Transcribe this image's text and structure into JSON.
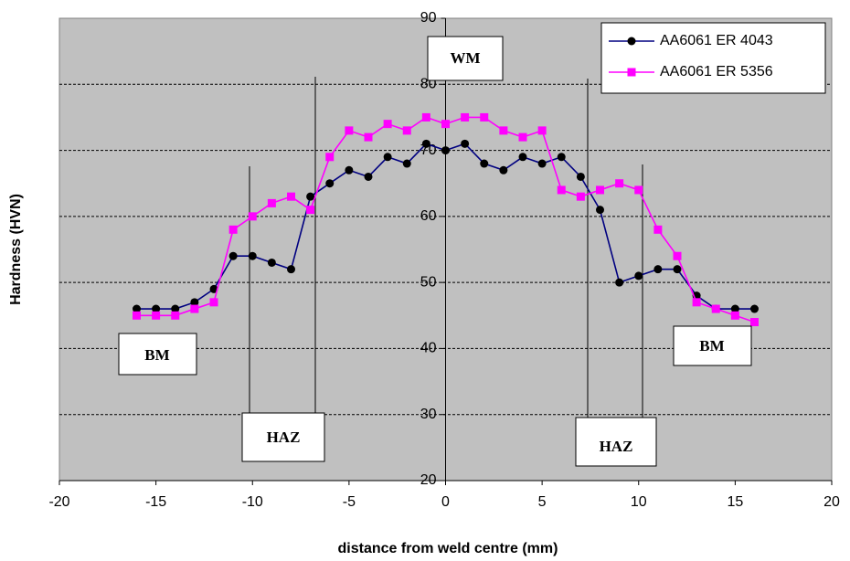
{
  "chart_data": {
    "type": "line",
    "x_label": "distance from weld centre (mm)",
    "y_label": "Hardness (HVN)",
    "xlim": [
      -20,
      20
    ],
    "xticks": [
      -20,
      -15,
      -10,
      -5,
      0,
      5,
      10,
      15,
      20
    ],
    "ylim": [
      20,
      90
    ],
    "yticks": [
      20,
      30,
      40,
      50,
      60,
      70,
      80,
      90
    ],
    "grid": true,
    "plot_background": "#c0c0c0",
    "legend_position": "upper right",
    "x": [
      -16,
      -15,
      -14,
      -13,
      -12,
      -11,
      -10,
      -9,
      -8,
      -7,
      -6,
      -5,
      -4,
      -3,
      -2,
      -1,
      0,
      1,
      2,
      3,
      4,
      5,
      6,
      7,
      8,
      9,
      10,
      11,
      12,
      13,
      14,
      15,
      16
    ],
    "series": [
      {
        "name": "AA6061 ER 4043",
        "color": "#000080",
        "marker": "circle",
        "marker_color": "#000000",
        "values": [
          46,
          46,
          46,
          47,
          49,
          54,
          54,
          53,
          52,
          63,
          65,
          67,
          66,
          69,
          68,
          71,
          70,
          71,
          68,
          67,
          69,
          68,
          69,
          66,
          61,
          50,
          51,
          52,
          52,
          48,
          46,
          46,
          46
        ]
      },
      {
        "name": "AA6061 ER 5356",
        "color": "#ff00ff",
        "marker": "square",
        "marker_color": "#ff00ff",
        "values": [
          45,
          45,
          45,
          46,
          47,
          58,
          60,
          62,
          63,
          61,
          69,
          73,
          72,
          74,
          73,
          75,
          74,
          75,
          75,
          73,
          72,
          73,
          64,
          63,
          64,
          65,
          64,
          58,
          54,
          47,
          46,
          45,
          44
        ]
      }
    ],
    "annotations": [
      "BM",
      "HAZ",
      "WM",
      "HAZ",
      "BM"
    ]
  }
}
